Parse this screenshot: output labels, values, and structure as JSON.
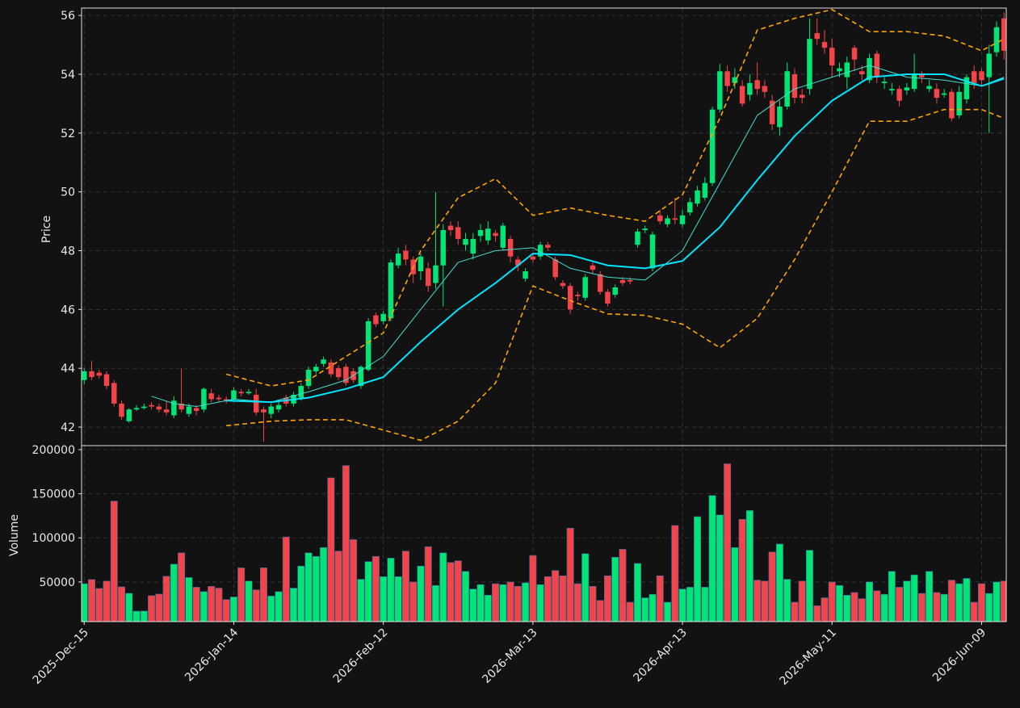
{
  "chart_data": {
    "type": "candlestick",
    "y_label": "Price",
    "volume_label": "Volume",
    "up_color": "#00e676",
    "down_color": "#f24449",
    "grid": true,
    "xlim": [
      -0.35,
      123.3
    ],
    "ylim": [
      41.37,
      56.25
    ],
    "yticks": [
      42,
      44,
      46,
      48,
      50,
      52,
      54,
      56
    ],
    "volume_ylim": [
      5000,
      204600
    ],
    "volume_yticks": [
      50000,
      100000,
      150000,
      200000
    ],
    "xticks": [
      {
        "value": 0,
        "label": "2025-Dec-15"
      },
      {
        "value": 20,
        "label": "2026-Jan-14"
      },
      {
        "value": 40,
        "label": "2026-Feb-12"
      },
      {
        "value": 60,
        "label": "2026-Mar-13"
      },
      {
        "value": 80,
        "label": "2026-Apr-13"
      },
      {
        "value": 100,
        "label": "2026-May-11"
      },
      {
        "value": 120,
        "label": "2026-Jun-09"
      }
    ],
    "open": [
      43.6,
      43.9,
      43.85,
      43.8,
      43.5,
      42.8,
      42.2,
      42.6,
      42.65,
      42.75,
      42.7,
      42.6,
      42.4,
      42.8,
      42.45,
      42.65,
      42.6,
      43.15,
      43.0,
      42.95,
      42.95,
      43.2,
      43.15,
      43.1,
      42.6,
      42.45,
      42.6,
      43.0,
      42.8,
      43.0,
      43.4,
      43.9,
      44.15,
      44.2,
      44.0,
      44.05,
      43.9,
      43.4,
      43.95,
      45.8,
      45.6,
      45.7,
      47.5,
      48.0,
      47.7,
      47.3,
      47.4,
      46.9,
      47.5,
      48.85,
      48.8,
      48.2,
      47.9,
      48.5,
      48.35,
      48.6,
      48.1,
      48.4,
      47.7,
      47.05,
      47.8,
      47.8,
      48.2,
      47.7,
      46.9,
      46.8,
      46.5,
      46.4,
      47.5,
      47.2,
      46.6,
      46.5,
      47.0,
      47.0,
      48.2,
      48.7,
      47.4,
      49.2,
      48.9,
      49.1,
      48.9,
      49.3,
      49.6,
      49.8,
      50.3,
      52.8,
      54.1,
      53.7,
      53.6,
      53.3,
      53.8,
      53.6,
      53.1,
      52.2,
      52.9,
      54.0,
      53.3,
      53.5,
      55.4,
      55.1,
      54.9,
      54.1,
      53.9,
      54.9,
      54.1,
      53.8,
      54.7,
      53.7,
      53.45,
      53.5,
      53.45,
      53.5,
      54.0,
      53.5,
      53.5,
      53.3,
      53.4,
      52.6,
      53.15,
      54.1,
      54.1,
      53.9,
      54.75,
      55.9
    ],
    "high": [
      44.0,
      44.25,
      43.95,
      43.9,
      43.6,
      42.9,
      42.65,
      42.75,
      42.8,
      42.85,
      42.8,
      42.9,
      43.05,
      44.0,
      42.8,
      42.75,
      43.35,
      43.3,
      43.1,
      43.05,
      43.35,
      43.3,
      43.3,
      43.3,
      42.7,
      42.8,
      42.85,
      43.1,
      43.2,
      43.5,
      44.05,
      44.15,
      44.4,
      44.3,
      44.1,
      44.15,
      44.0,
      44.1,
      45.7,
      45.9,
      45.95,
      47.7,
      48.1,
      48.2,
      47.8,
      47.9,
      47.6,
      50.0,
      48.9,
      49.0,
      49.0,
      48.6,
      48.6,
      48.9,
      49.0,
      48.7,
      48.95,
      48.5,
      47.8,
      47.4,
      47.9,
      48.3,
      48.3,
      47.8,
      47.0,
      46.9,
      46.6,
      47.2,
      47.6,
      47.3,
      46.7,
      46.85,
      47.1,
      47.1,
      48.75,
      48.85,
      48.65,
      49.4,
      49.2,
      49.8,
      49.4,
      49.8,
      50.2,
      50.5,
      52.9,
      54.35,
      54.3,
      54.2,
      53.8,
      54.0,
      54.4,
      53.8,
      53.3,
      53.1,
      54.4,
      54.2,
      53.5,
      55.9,
      55.9,
      55.5,
      55.2,
      54.4,
      54.6,
      55.0,
      54.3,
      54.7,
      54.8,
      53.9,
      53.7,
      53.6,
      53.7,
      54.7,
      54.1,
      53.8,
      53.7,
      53.5,
      53.5,
      53.6,
      54.0,
      54.3,
      54.2,
      55.0,
      55.8,
      56.1
    ],
    "low": [
      43.45,
      43.6,
      43.65,
      43.3,
      42.7,
      42.25,
      42.15,
      42.55,
      42.6,
      42.6,
      42.5,
      42.4,
      42.3,
      42.5,
      42.35,
      42.4,
      42.5,
      42.85,
      42.85,
      42.8,
      42.85,
      43.05,
      43.1,
      42.4,
      41.5,
      42.3,
      42.5,
      42.7,
      42.7,
      42.9,
      43.3,
      43.8,
      44.05,
      43.7,
      43.6,
      43.4,
      43.5,
      43.3,
      43.9,
      45.4,
      45.5,
      45.6,
      47.4,
      47.5,
      46.9,
      47.0,
      46.6,
      46.7,
      46.1,
      48.5,
      48.2,
      48.0,
      47.7,
      48.3,
      48.2,
      48.3,
      48.0,
      47.6,
      47.3,
      46.95,
      47.6,
      47.7,
      48.0,
      47.0,
      46.7,
      45.85,
      46.3,
      46.3,
      47.2,
      46.5,
      46.1,
      46.4,
      46.8,
      46.85,
      48.1,
      48.6,
      47.3,
      48.9,
      48.8,
      48.9,
      48.8,
      49.2,
      49.5,
      49.7,
      50.2,
      52.7,
      53.4,
      53.5,
      52.9,
      53.1,
      53.3,
      53.2,
      52.1,
      51.9,
      52.8,
      53.0,
      53.0,
      53.3,
      55.0,
      54.7,
      53.9,
      53.9,
      53.5,
      54.1,
      53.8,
      53.7,
      53.7,
      53.5,
      53.3,
      52.9,
      53.3,
      53.4,
      53.7,
      53.4,
      53.0,
      53.2,
      52.4,
      52.5,
      53.0,
      53.5,
      53.6,
      52.0,
      54.6,
      54.5
    ],
    "close": [
      43.9,
      43.7,
      43.75,
      43.4,
      42.8,
      42.35,
      42.6,
      42.65,
      42.7,
      42.7,
      42.6,
      42.5,
      42.9,
      42.6,
      42.7,
      42.55,
      43.3,
      42.95,
      42.95,
      42.9,
      43.25,
      43.15,
      43.2,
      42.5,
      42.5,
      42.7,
      42.75,
      42.8,
      43.1,
      43.4,
      43.95,
      44.05,
      44.3,
      43.8,
      43.7,
      43.5,
      43.6,
      44.05,
      45.6,
      45.5,
      45.85,
      47.6,
      47.9,
      47.7,
      47.2,
      47.8,
      46.8,
      47.5,
      48.7,
      48.7,
      48.4,
      48.4,
      48.4,
      48.7,
      48.75,
      48.5,
      48.85,
      47.8,
      47.5,
      47.3,
      47.7,
      48.2,
      48.1,
      47.1,
      46.8,
      46.0,
      46.45,
      47.1,
      47.35,
      46.6,
      46.2,
      46.75,
      46.9,
      46.95,
      48.65,
      48.75,
      48.55,
      49.0,
      49.1,
      49.05,
      49.2,
      49.65,
      50.05,
      50.3,
      52.8,
      54.1,
      53.6,
      53.9,
      53.0,
      53.7,
      53.5,
      53.4,
      52.3,
      52.9,
      54.1,
      53.2,
      53.2,
      55.2,
      55.2,
      54.9,
      54.3,
      54.2,
      54.4,
      54.5,
      54.0,
      54.55,
      53.9,
      53.75,
      53.5,
      53.1,
      53.55,
      54.0,
      53.9,
      53.6,
      53.2,
      53.35,
      52.5,
      53.4,
      53.9,
      53.7,
      53.8,
      54.7,
      55.6,
      54.8
    ],
    "volume": [
      48000,
      52700,
      42600,
      50900,
      141700,
      44400,
      37100,
      16900,
      17000,
      34400,
      36200,
      56400,
      70100,
      83000,
      55000,
      44000,
      39000,
      45000,
      43000,
      30000,
      33000,
      66000,
      51000,
      41000,
      66000,
      34000,
      39000,
      101000,
      43000,
      68000,
      83000,
      79000,
      89000,
      168000,
      85000,
      182000,
      98000,
      53000,
      73000,
      79000,
      56000,
      77000,
      56000,
      85000,
      50000,
      68000,
      90000,
      46000,
      83000,
      72000,
      74000,
      62000,
      42000,
      47000,
      35000,
      48000,
      47000,
      50000,
      45000,
      49000,
      80000,
      47000,
      56000,
      63000,
      57000,
      111000,
      48000,
      82000,
      45000,
      29000,
      57000,
      78000,
      87000,
      27000,
      71000,
      32000,
      36000,
      57000,
      27000,
      114000,
      42000,
      44000,
      124000,
      44000,
      148000,
      126000,
      184000,
      89000,
      121000,
      131000,
      52000,
      51000,
      84000,
      93000,
      53000,
      27000,
      51000,
      86000,
      23000,
      32000,
      50000,
      46000,
      35000,
      38000,
      31000,
      50000,
      40000,
      36000,
      62000,
      44000,
      51000,
      58000,
      37000,
      62000,
      38000,
      36000,
      52000,
      48000,
      54000,
      27000,
      48000,
      37000,
      50000,
      51000
    ],
    "overlays": [
      {
        "color": "#ffa500",
        "width": 1.6,
        "dash": true,
        "x": [
          19,
          25,
          30,
          35,
          40,
          45,
          50,
          55,
          60,
          65,
          70,
          75,
          80,
          85,
          90,
          95,
          100,
          105,
          110,
          115,
          120,
          123
        ],
        "values": [
          43.8,
          43.4,
          43.6,
          44.4,
          45.2,
          48.0,
          49.8,
          50.45,
          49.2,
          49.45,
          49.2,
          49.0,
          49.9,
          52.5,
          55.5,
          55.9,
          56.2,
          55.45,
          55.45,
          55.3,
          54.8,
          55.2
        ]
      },
      {
        "color": "#ffa500",
        "width": 1.6,
        "dash": true,
        "x": [
          19,
          25,
          30,
          35,
          40,
          45,
          50,
          55,
          60,
          65,
          70,
          75,
          80,
          85,
          90,
          95,
          100,
          105,
          110,
          115,
          120,
          123
        ],
        "values": [
          42.05,
          42.2,
          42.25,
          42.25,
          41.9,
          41.55,
          42.2,
          43.5,
          46.8,
          46.3,
          45.85,
          45.8,
          45.5,
          44.7,
          45.7,
          47.7,
          50.0,
          52.4,
          52.4,
          52.8,
          52.8,
          52.5
        ]
      },
      {
        "color": "#40e0d0",
        "width": 1,
        "dash": false,
        "x": [
          9,
          12,
          15,
          20,
          25,
          30,
          35,
          40,
          45,
          50,
          55,
          60,
          65,
          70,
          75,
          80,
          85,
          90,
          95,
          100,
          105,
          110,
          115,
          120,
          123
        ],
        "values": [
          43.05,
          42.8,
          42.7,
          42.95,
          42.85,
          43.2,
          43.6,
          44.4,
          46.0,
          47.6,
          48.0,
          48.1,
          47.4,
          47.1,
          47.0,
          48.0,
          50.3,
          52.6,
          53.5,
          53.9,
          54.3,
          53.9,
          53.8,
          53.6,
          53.9
        ]
      },
      {
        "color": "#00e5ff",
        "width": 2,
        "dash": false,
        "x": [
          19,
          25,
          30,
          35,
          40,
          45,
          50,
          55,
          60,
          65,
          70,
          75,
          80,
          85,
          90,
          95,
          100,
          105,
          110,
          115,
          120,
          123
        ],
        "values": [
          42.9,
          42.85,
          43.0,
          43.3,
          43.7,
          44.9,
          46.0,
          46.9,
          47.9,
          47.85,
          47.5,
          47.4,
          47.65,
          48.8,
          50.4,
          51.9,
          53.1,
          53.9,
          54.0,
          54.0,
          53.6,
          53.85
        ]
      }
    ]
  }
}
